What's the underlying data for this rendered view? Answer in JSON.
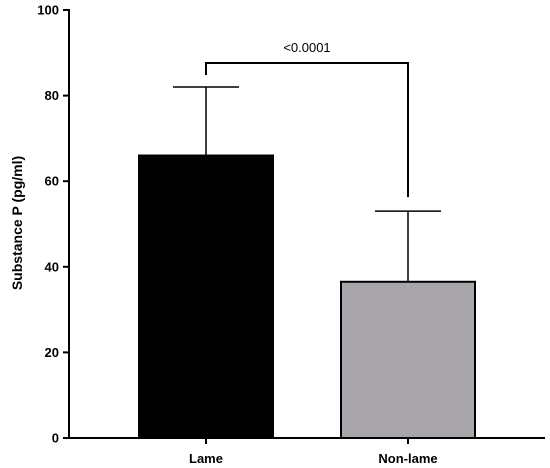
{
  "chart_data": {
    "type": "bar",
    "categories": [
      "Lame",
      "Non-lame"
    ],
    "values": [
      66,
      36.5
    ],
    "error_upper": [
      82,
      53
    ],
    "ylabel": "Substance P (pg/ml)",
    "xlabel": "",
    "ylim": [
      0,
      100
    ],
    "yticks": [
      "0",
      "20",
      "40",
      "60",
      "80",
      "100"
    ],
    "bar_colors": [
      "#000000",
      "#a8a6ab"
    ],
    "annotation": {
      "text": "<0.0001",
      "between": [
        "Lame",
        "Non-lame"
      ]
    },
    "grid": false,
    "legend": "none"
  }
}
